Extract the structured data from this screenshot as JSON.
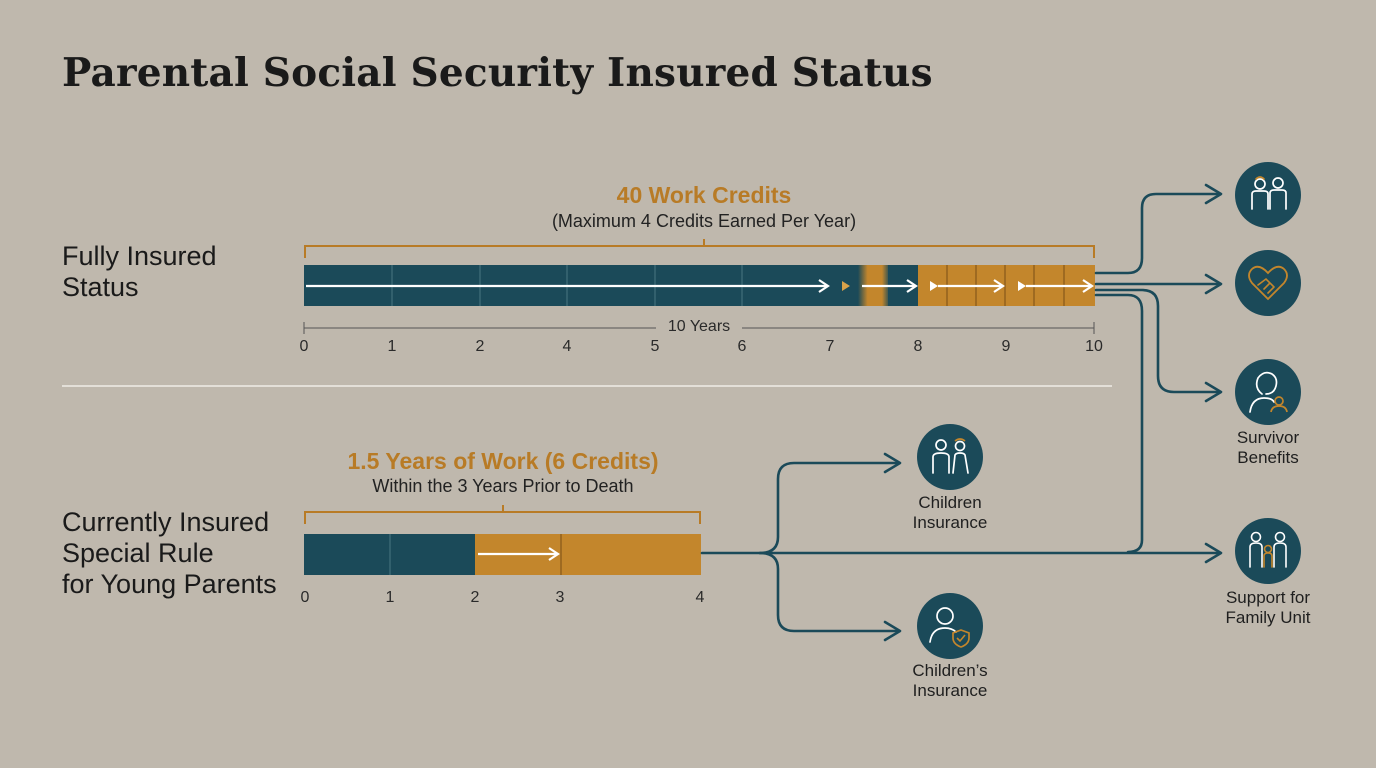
{
  "title": "Parental Social Security Insured Status",
  "fully": {
    "label_line1": "Fully Insured",
    "label_line2": "Status",
    "credits": "40 Work Credits",
    "credits_note": "(Maximum 4 Credits Earned Per Year)",
    "span_label": "10 Years",
    "ticks": [
      "0",
      "1",
      "2",
      "4",
      "5",
      "6",
      "7",
      "8",
      "9",
      "10"
    ]
  },
  "currently": {
    "label_line1": "Currently Insured",
    "label_line2": "Special Rule",
    "label_line3": "for Young Parents",
    "credits": "1.5 Years of Work (6 Credits)",
    "credits_note": "Within the 3 Years Prior to Death",
    "ticks": [
      "0",
      "1",
      "2",
      "3",
      "4"
    ]
  },
  "benefits": {
    "survivor_line1": "Survivor",
    "survivor_line2": "Benefits",
    "family_line1": "Support for",
    "family_line2": "Family Unit",
    "children_line1": "Children",
    "children_line2": "Insurance",
    "childrens_line1": "Children’s",
    "childrens_line2": "Insurance"
  },
  "colors": {
    "teal": "#1b4a59",
    "gold": "#c3862c",
    "background": "#bfb8ad"
  },
  "icons": [
    "family-icon",
    "heart-handshake-icon",
    "widow-icon",
    "family-unit-icon",
    "children-icon",
    "child-shield-icon"
  ]
}
